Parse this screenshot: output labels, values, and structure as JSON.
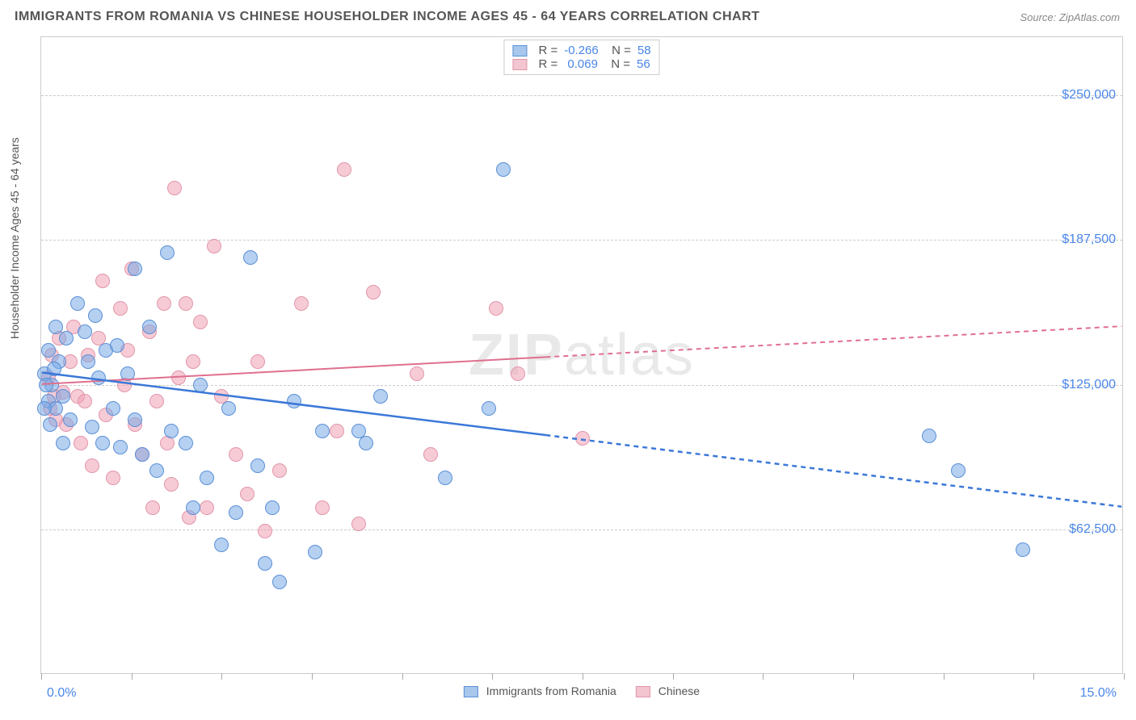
{
  "title": "IMMIGRANTS FROM ROMANIA VS CHINESE HOUSEHOLDER INCOME AGES 45 - 64 YEARS CORRELATION CHART",
  "source": "Source: ZipAtlas.com",
  "watermark": {
    "bold": "ZIP",
    "thin": "atlas"
  },
  "y_axis_label": "Householder Income Ages 45 - 64 years",
  "x_axis": {
    "min_label": "0.0%",
    "max_label": "15.0%",
    "min": 0,
    "max": 15
  },
  "y_axis": {
    "min": 0,
    "max": 275000,
    "ticks": [
      {
        "value": 62500,
        "label": "$62,500"
      },
      {
        "value": 125000,
        "label": "$125,000"
      },
      {
        "value": 187500,
        "label": "$187,500"
      },
      {
        "value": 250000,
        "label": "$250,000"
      }
    ]
  },
  "x_tick_positions": [
    0,
    1.25,
    2.5,
    3.75,
    5,
    6.25,
    7.5,
    8.75,
    10,
    11.25,
    12.5,
    13.75,
    15
  ],
  "series": {
    "romania": {
      "label": "Immigrants from Romania",
      "fill": "rgba(120,170,230,0.55)",
      "stroke": "#5b8fd6",
      "swatch_fill": "#a8c7ec",
      "swatch_stroke": "#5b8fd6",
      "R": "-0.266",
      "N": "58",
      "trend": {
        "y_at_xmin": 130000,
        "y_at_xmax": 72000,
        "split_x": 7.0,
        "color": "#3b78d8",
        "width": 2.5
      }
    },
    "chinese": {
      "label": "Chinese",
      "fill": "rgba(240,160,180,0.55)",
      "stroke": "#e196aa",
      "swatch_fill": "#f3c5d0",
      "swatch_stroke": "#e196aa",
      "R": "0.069",
      "N": "56",
      "trend": {
        "y_at_xmin": 125000,
        "y_at_xmax": 150000,
        "split_x": 7.0,
        "color": "#e06f8e",
        "width": 2
      }
    }
  },
  "point_radius": 9,
  "points_romania": [
    [
      0.05,
      130000
    ],
    [
      0.1,
      118000
    ],
    [
      0.1,
      140000
    ],
    [
      0.12,
      108000
    ],
    [
      0.15,
      125000
    ],
    [
      0.2,
      150000
    ],
    [
      0.2,
      115000
    ],
    [
      0.25,
      135000
    ],
    [
      0.3,
      120000
    ],
    [
      0.3,
      100000
    ],
    [
      0.35,
      145000
    ],
    [
      0.4,
      110000
    ],
    [
      0.5,
      160000
    ],
    [
      0.6,
      148000
    ],
    [
      0.65,
      135000
    ],
    [
      0.7,
      107000
    ],
    [
      0.75,
      155000
    ],
    [
      0.8,
      128000
    ],
    [
      0.85,
      100000
    ],
    [
      0.9,
      140000
    ],
    [
      1.0,
      115000
    ],
    [
      1.05,
      142000
    ],
    [
      1.1,
      98000
    ],
    [
      1.2,
      130000
    ],
    [
      1.3,
      175000
    ],
    [
      1.3,
      110000
    ],
    [
      1.4,
      95000
    ],
    [
      1.5,
      150000
    ],
    [
      1.6,
      88000
    ],
    [
      1.75,
      182000
    ],
    [
      1.8,
      105000
    ],
    [
      2.0,
      100000
    ],
    [
      2.1,
      72000
    ],
    [
      2.2,
      125000
    ],
    [
      2.3,
      85000
    ],
    [
      2.5,
      56000
    ],
    [
      2.6,
      115000
    ],
    [
      2.7,
      70000
    ],
    [
      2.9,
      180000
    ],
    [
      3.0,
      90000
    ],
    [
      3.1,
      48000
    ],
    [
      3.2,
      72000
    ],
    [
      3.3,
      40000
    ],
    [
      3.5,
      118000
    ],
    [
      3.8,
      53000
    ],
    [
      3.9,
      105000
    ],
    [
      4.4,
      105000
    ],
    [
      4.5,
      100000
    ],
    [
      4.7,
      120000
    ],
    [
      5.6,
      85000
    ],
    [
      6.2,
      115000
    ],
    [
      6.4,
      218000
    ],
    [
      12.3,
      103000
    ],
    [
      12.7,
      88000
    ],
    [
      13.6,
      54000
    ],
    [
      0.05,
      115000
    ],
    [
      0.07,
      125000
    ],
    [
      0.18,
      132000
    ]
  ],
  "points_chinese": [
    [
      0.1,
      128000
    ],
    [
      0.12,
      115000
    ],
    [
      0.15,
      138000
    ],
    [
      0.18,
      120000
    ],
    [
      0.2,
      110000
    ],
    [
      0.25,
      145000
    ],
    [
      0.3,
      122000
    ],
    [
      0.35,
      108000
    ],
    [
      0.4,
      135000
    ],
    [
      0.45,
      150000
    ],
    [
      0.5,
      120000
    ],
    [
      0.55,
      100000
    ],
    [
      0.6,
      118000
    ],
    [
      0.65,
      138000
    ],
    [
      0.7,
      90000
    ],
    [
      0.8,
      145000
    ],
    [
      0.85,
      170000
    ],
    [
      0.9,
      112000
    ],
    [
      1.0,
      85000
    ],
    [
      1.1,
      158000
    ],
    [
      1.15,
      125000
    ],
    [
      1.2,
      140000
    ],
    [
      1.25,
      175000
    ],
    [
      1.3,
      108000
    ],
    [
      1.4,
      95000
    ],
    [
      1.5,
      148000
    ],
    [
      1.55,
      72000
    ],
    [
      1.6,
      118000
    ],
    [
      1.7,
      160000
    ],
    [
      1.75,
      100000
    ],
    [
      1.8,
      82000
    ],
    [
      1.85,
      210000
    ],
    [
      1.9,
      128000
    ],
    [
      2.0,
      160000
    ],
    [
      2.05,
      68000
    ],
    [
      2.1,
      135000
    ],
    [
      2.2,
      152000
    ],
    [
      2.3,
      72000
    ],
    [
      2.4,
      185000
    ],
    [
      2.5,
      120000
    ],
    [
      2.7,
      95000
    ],
    [
      2.85,
      78000
    ],
    [
      3.0,
      135000
    ],
    [
      3.1,
      62000
    ],
    [
      3.3,
      88000
    ],
    [
      3.6,
      160000
    ],
    [
      3.9,
      72000
    ],
    [
      4.1,
      105000
    ],
    [
      4.2,
      218000
    ],
    [
      4.4,
      65000
    ],
    [
      4.6,
      165000
    ],
    [
      5.2,
      130000
    ],
    [
      5.4,
      95000
    ],
    [
      6.3,
      158000
    ],
    [
      6.6,
      130000
    ],
    [
      7.5,
      102000
    ]
  ],
  "colors": {
    "title": "#555555",
    "source": "#888888",
    "axis_text": "#4a86e8",
    "grid": "#cccccc"
  }
}
